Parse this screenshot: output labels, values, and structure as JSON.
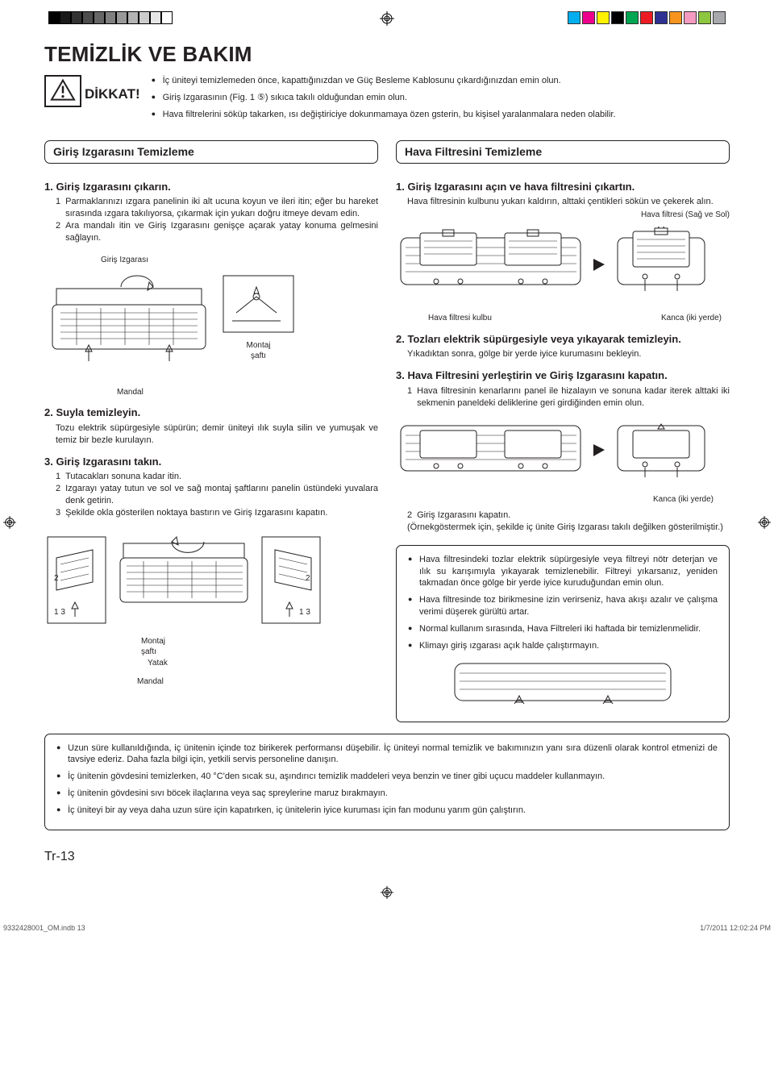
{
  "print_marks": {
    "bw_shades": [
      "#000000",
      "#1a1a1a",
      "#333333",
      "#4d4d4d",
      "#666666",
      "#808080",
      "#999999",
      "#b3b3b3",
      "#cccccc",
      "#e6e6e6",
      "#ffffff"
    ],
    "color_swatches": [
      "#00aeef",
      "#ec008c",
      "#fff200",
      "#000000",
      "#00a651",
      "#ed1c24",
      "#2e3192",
      "#f7941d",
      "#f49ac1",
      "#8dc63f",
      "#a7a9ac"
    ]
  },
  "title": "TEMİZLİK VE BAKIM",
  "caution": {
    "label": "DİKKAT!",
    "bullets": [
      "İç üniteyi temizlemeden önce, kapattığınızdan ve Güç Besleme Kablosunu çıkardığınızdan emin olun.",
      "Giriş Izgarasının (Fig. 1 ⑤) sıkıca takılı olduğundan emin olun.",
      "Hava filtrelerini söküp takarken, ısı değiştiriciye dokunmamaya özen gsterin, bu kişisel yaralanmalara neden olabilir."
    ]
  },
  "left": {
    "heading": "Giriş Izgarasını Temizleme",
    "s1": {
      "title": "1. Giriş Izgarasını çıkarın.",
      "items": [
        "Parmaklarınızı ızgara panelinin iki alt ucuna koyun ve ileri itin; eğer bu hareket sırasında ızgara takılıyorsa, çıkarmak için yukarı doğru itmeye devam edin.",
        "Ara mandalı itin ve Giriş Izgarasını genişçe açarak yatay konuma gelmesini sağlayın."
      ],
      "fig_label_grille": "Giriş Izgarası",
      "fig_label_shaft": "Montaj\nşaftı",
      "fig_label_latch": "Mandal"
    },
    "s2": {
      "title": "2. Suyla temizleyin.",
      "text": "Tozu elektrik süpürgesiyle süpürün; demir üniteyi ılık suyla silin ve yumuşak ve temiz bir bezle kurulayın."
    },
    "s3": {
      "title": "3. Giriş Izgarasını takın.",
      "items": [
        "Tutacakları sonuna kadar itin.",
        "Izgarayı yatay tutun ve sol ve sağ montaj şaftlarını panelin üstündeki yuvalara denk getirin.",
        "Şekilde okla gösterilen noktaya bastırın ve Giriş Izgarasını kapatın."
      ],
      "fig_label_shaft": "Montaj\nşaftı",
      "fig_label_bed": "Yatak",
      "fig_label_latch": "Mandal"
    }
  },
  "right": {
    "heading": "Hava Filtresini Temizleme",
    "s1": {
      "title": "1. Giriş Izgarasını açın ve hava filtresini çıkartın.",
      "text": "Hava filtresinin kulbunu yukarı kaldırın, alttaki çentikleri sökün ve çekerek alın.",
      "label_filter": "Hava filtresi (Sağ ve Sol)",
      "label_knob": "Hava filtresi kulbu",
      "label_hook": "Kanca (iki yerde)"
    },
    "s2": {
      "title": "2. Tozları elektrik süpürgesiyle veya yıkayarak temizleyin.",
      "text": "Yıkadıktan sonra, gölge bir yerde iyice kurumasını bekleyin."
    },
    "s3": {
      "title": "3. Hava Filtresini yerleştirin ve Giriş Izgarasını kapatın.",
      "item1": "Hava filtresinin kenarlarını panel ile hizalayın ve sonuna kadar iterek alttaki iki sekmenin paneldeki deliklerine geri girdiğinden emin olun.",
      "label_hook": "Kanca (iki yerde)",
      "item2": "Giriş Izgarasını kapatın.",
      "note": "(Örnekgöstermek için, şekilde iç ünite Giriş Izgarası takılı değilken gösterilmiştir.)"
    },
    "tips": [
      "Hava filtresindeki tozlar elektrik süpürgesiyle veya filtreyi nötr deterjan ve ılık su karışımıyla yıkayarak temizlenebilir. Filtreyi yıkarsanız, yeniden takmadan önce gölge bir yerde iyice kuruduğundan emin olun.",
      "Hava filtresinde toz birikmesine izin verirseniz, hava akışı azalır ve çalışma verimi düşerek gürültü artar.",
      "Normal kullanım sırasında, Hava Filtreleri iki haftada bir temizlenmelidir.",
      "Klimayı giriş ızgarası açık halde çalıştırmayın."
    ]
  },
  "bottom_notes": [
    "Uzun süre kullanıldığında, iç ünitenin içinde toz birikerek performansı düşebilir. İç üniteyi normal temizlik ve bakımınızın yanı sıra düzenli olarak kontrol etmenizi de tavsiye ederiz. Daha fazla bilgi için, yetkili servis personeline danışın.",
    "İç ünitenin gövdesini temizlerken, 40 °C'den sıcak su, aşındırıcı temizlik maddeleri veya benzin ve tiner gibi uçucu maddeler kullanmayın.",
    "İç ünitenin gövdesini sıvı böcek ilaçlarına veya saç spreylerine maruz bırakmayın.",
    "İç üniteyi bir ay veya daha uzun süre için kapatırken, iç ünitelerin iyice kuruması için fan modunu yarım gün çalıştırın."
  ],
  "page_number": "Tr-13",
  "print_footer": {
    "file": "9332428001_OM.indb   13",
    "timestamp": "1/7/2011   12:02:24 PM"
  }
}
